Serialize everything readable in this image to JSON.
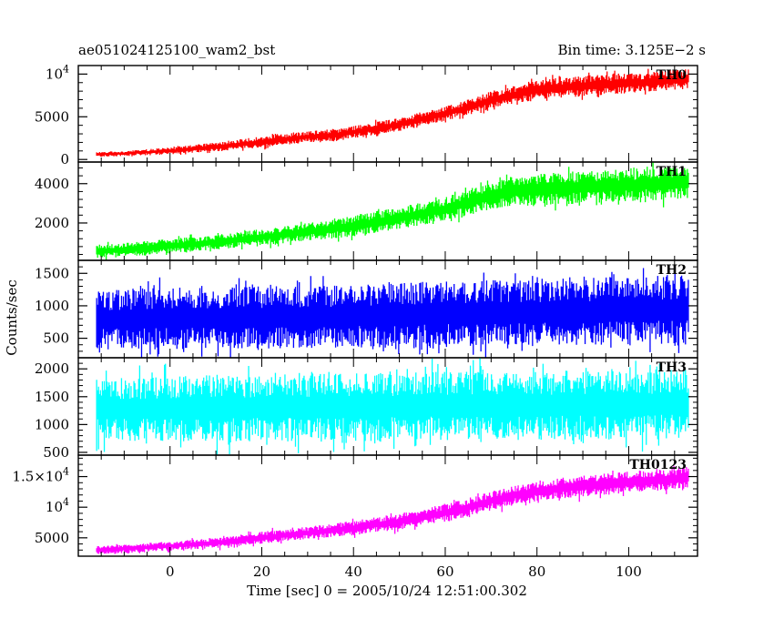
{
  "header": {
    "left_title": "ae051024125100_wam2_bst",
    "right_title": "Bin time: 3.125E−2 s"
  },
  "axes": {
    "xlabel": "Time [sec] 0 = 2005/10/24 12:51:00.302",
    "ylabel": "Counts/sec"
  },
  "chart_data": {
    "type": "line",
    "title": "ae051024125100_wam2_bst",
    "subtitle": "Bin time: 3.125E−2 s",
    "xlabel": "Time [sec] 0 = 2005/10/24 12:51:00.302",
    "ylabel": "Counts/sec",
    "xlim": [
      -20,
      115
    ],
    "x_ticks": [
      0,
      20,
      40,
      60,
      80,
      100
    ],
    "x_tick_labels": [
      "0",
      "20",
      "40",
      "60",
      "80",
      "100"
    ],
    "grid": false,
    "legend": "none",
    "panels": [
      {
        "name": "TH0",
        "color": "#ff0000",
        "ylim": [
          -300,
          11000
        ],
        "y_ticks": [
          0,
          5000,
          10000
        ],
        "y_tick_labels": [
          {
            "mant": "0",
            "exp": ""
          },
          {
            "mant": "5000",
            "exp": ""
          },
          {
            "mant": "10",
            "exp": "4"
          }
        ],
        "envelope": {
          "x": [
            -16,
            -10,
            0,
            10,
            20,
            30,
            36,
            40,
            50,
            60,
            65,
            70,
            75,
            80,
            85,
            90,
            95,
            100,
            105,
            110,
            113
          ],
          "low": [
            300,
            400,
            600,
            900,
            1400,
            2000,
            2100,
            2500,
            3300,
            4500,
            5200,
            5900,
            6500,
            7000,
            7200,
            7400,
            7500,
            7700,
            7900,
            8100,
            8300
          ],
          "high": [
            900,
            1000,
            1400,
            2000,
            2700,
            3300,
            3600,
            3900,
            4900,
            6200,
            7000,
            8000,
            8600,
            9200,
            9600,
            9800,
            10000,
            10100,
            10300,
            10500,
            10600
          ]
        }
      },
      {
        "name": "TH1",
        "color": "#00ff00",
        "ylim": [
          100,
          5100
        ],
        "y_ticks": [
          2000,
          4000
        ],
        "y_tick_labels": [
          {
            "mant": "2000",
            "exp": ""
          },
          {
            "mant": "4000",
            "exp": ""
          }
        ],
        "envelope": {
          "x": [
            -16,
            -10,
            0,
            10,
            20,
            30,
            40,
            50,
            60,
            65,
            70,
            75,
            80,
            85,
            90,
            95,
            100,
            105,
            110,
            113
          ],
          "low": [
            200,
            300,
            450,
            650,
            850,
            1100,
            1300,
            1700,
            2100,
            2400,
            2700,
            2850,
            2900,
            2950,
            3000,
            3050,
            3100,
            3150,
            3200,
            3250
          ],
          "high": [
            900,
            1000,
            1200,
            1400,
            1700,
            2000,
            2400,
            2800,
            3300,
            3700,
            4100,
            4400,
            4500,
            4600,
            4650,
            4700,
            4750,
            4800,
            4850,
            4900
          ]
        }
      },
      {
        "name": "TH2",
        "color": "#0000ff",
        "ylim": [
          200,
          1700
        ],
        "y_ticks": [
          500,
          1000,
          1500
        ],
        "y_tick_labels": [
          {
            "mant": "500",
            "exp": ""
          },
          {
            "mant": "1000",
            "exp": ""
          },
          {
            "mant": "1500",
            "exp": ""
          }
        ],
        "envelope": {
          "x": [
            -16,
            0,
            20,
            40,
            60,
            80,
            100,
            113
          ],
          "low": [
            320,
            330,
            340,
            350,
            360,
            380,
            390,
            400
          ],
          "high": [
            1250,
            1280,
            1300,
            1330,
            1380,
            1420,
            1450,
            1470
          ]
        }
      },
      {
        "name": "TH3",
        "color": "#00ffff",
        "ylim": [
          450,
          2200
        ],
        "y_ticks": [
          500,
          1000,
          1500,
          2000
        ],
        "y_tick_labels": [
          {
            "mant": "500",
            "exp": ""
          },
          {
            "mant": "1000",
            "exp": ""
          },
          {
            "mant": "1500",
            "exp": ""
          },
          {
            "mant": "2000",
            "exp": ""
          }
        ],
        "envelope": {
          "x": [
            -16,
            0,
            20,
            40,
            60,
            80,
            100,
            113
          ],
          "low": [
            700,
            700,
            700,
            700,
            720,
            720,
            730,
            740
          ],
          "high": [
            1850,
            1880,
            1900,
            1920,
            1950,
            1960,
            1980,
            2000
          ]
        }
      },
      {
        "name": "TH0123",
        "color": "#ff00ff",
        "ylim": [
          2000,
          18500
        ],
        "y_ticks": [
          5000,
          10000,
          15000
        ],
        "y_tick_labels": [
          {
            "mant": "5000",
            "exp": ""
          },
          {
            "mant": "10",
            "exp": "4"
          },
          {
            "mant": "1.5×10",
            "exp": "4"
          }
        ],
        "envelope": {
          "x": [
            -16,
            -10,
            0,
            10,
            20,
            30,
            40,
            50,
            60,
            65,
            70,
            75,
            80,
            85,
            90,
            95,
            100,
            105,
            110,
            113
          ],
          "low": [
            2300,
            2500,
            2900,
            3300,
            4000,
            4800,
            5400,
            6300,
            7600,
            8500,
            9500,
            10300,
            11000,
            11400,
            11700,
            12000,
            12300,
            12600,
            12900,
            13100
          ],
          "high": [
            3700,
            3900,
            4400,
            5000,
            6000,
            6800,
            7800,
            9000,
            10500,
            11500,
            12600,
            13500,
            14300,
            14800,
            15200,
            15500,
            15800,
            16100,
            16400,
            16600
          ]
        }
      }
    ]
  }
}
